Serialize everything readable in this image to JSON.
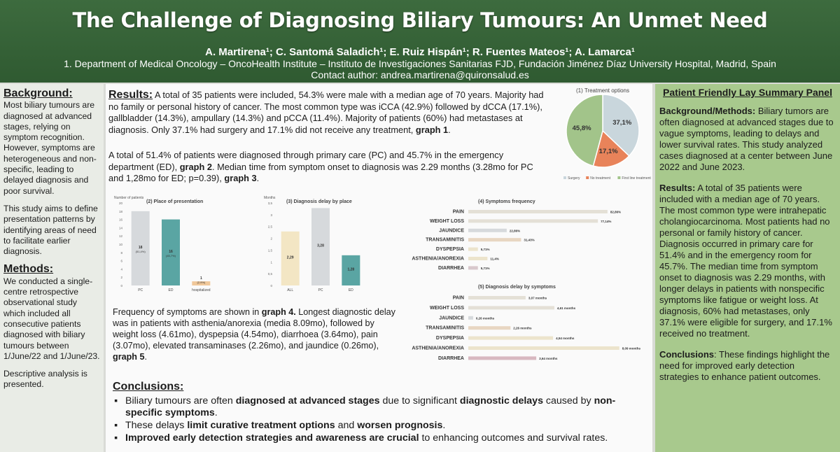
{
  "header": {
    "title": "The Challenge of Diagnosing Biliary Tumours: An Unmet Need",
    "authors": "A. Martirena¹; C. Santomá Saladich¹; E. Ruiz Hispán¹; R. Fuentes Mateos¹; A. Lamarca¹",
    "affiliation": "1.   Department of Medical Oncology – OncoHealth Institute – Instituto de Investigaciones Sanitarias FJD, Fundación Jiménez Díaz University Hospital, Madrid, Spain",
    "contact": "Contact author: andrea.martirena@quironsalud.es"
  },
  "left": {
    "background_title": "Background:",
    "background_text": "Most biliary tumours are diagnosed at advanced stages, relying on symptom recognition. However, symptoms are heterogeneous and non-specific, leading to delayed diagnosis and poor survival.",
    "aim_text": "This study aims to define presentation patterns by identifying areas of need to facilitate earlier diagnosis.",
    "methods_title": "Methods:",
    "methods_text": "We conducted a single-centre retrospective observational study which included all consecutive patients diagnosed with biliary tumours between 1/June/22 and 1/June/23.",
    "descriptive_text": "Descriptive analysis is presented."
  },
  "results": {
    "heading": "Results:",
    "text1": "A total of 35 patients were included, 54.3% were male with a median age of 70 years. Majority had no family or personal history of cancer. The most common type was iCCA (42.9%) followed by dCCA (17.1%), gallbladder (14.3%), ampullary (14.3%) and pCCA (11.4%). Majority of patients (60%) had metastases at diagnosis. Only 37.1% had surgery and 17.1% did not receive any treatment,",
    "ref1": "graph 1",
    "text2a": "A total of 51.4% of patients were diagnosed through primary care (PC) and 45.7% in the emergency department (ED),",
    "ref2": "graph 2",
    "text2b": ". Median time from symptom onset to diagnosis was 2.29 months (3.28mo for PC and 1,28mo for ED; p=0.39),",
    "ref3": "graph 3",
    "text3a": "Frequency of symptoms are shown in",
    "ref4": "graph 4.",
    "text3b": "Longest diagnostic delay was in patients with asthenia/anorexia (media 8.09mo), followed by weight loss (4.61mo), dyspepsia (4.54mo), diarrhoea (3.64mo), pain (3.07mo), elevated transaminases (2.26mo), and jaundice (0.26mo),",
    "ref5": "graph 5"
  },
  "conclusions": {
    "heading": "Conclusions:",
    "b1_pre": "Biliary tumours are often",
    "b1_bold1": "diagnosed at advanced stages",
    "b1_mid": "due to significant",
    "b1_bold2": "diagnostic delays",
    "b1_mid2": "caused by",
    "b1_bold3": "non-specific symptoms",
    "b2_pre": "These delays",
    "b2_bold1": "limit curative treatment options",
    "b2_mid": "and",
    "b2_bold2": "worsen prognosis",
    "b3_bold": "Improved early detection strategies and awareness are crucial",
    "b3_post": "to enhancing outcomes and survival rates."
  },
  "lay": {
    "title": "Patient Friendly Lay Summary Panel",
    "bg_label": "Background/Methods:",
    "bg_text": "Biliary tumors are often diagnosed at advanced stages due to vague symptoms, leading to delays and lower survival rates. This study analyzed cases diagnosed at a center between June 2022 and June 2023.",
    "res_label": "Results:",
    "res_text": "A total of 35 patients were included with a median age of 70 years. The most common type were intrahepatic cholangiocarcinoma. Most patients had no personal or family history of cancer. Diagnosis occurred in primary care for 51.4% and in the emergency room for 45.7%. The median time from symptom onset to diagnosis was 2.29 months, with longer delays in patients with nonspecific symptoms like fatigue or weight loss. At diagnosis, 60% had metastases, only 37.1% were eligible for surgery, and 17.1% received no treatment.",
    "concl_label": "Conclusions",
    "concl_text": ": These findings highlight the need for improved early detection strategies to enhance patient outcomes."
  },
  "chart_data": [
    {
      "type": "pie",
      "title": "(1) Treatment options",
      "labels": [
        "Surgery",
        "No treatment",
        "First line treatment"
      ],
      "values": [
        37.1,
        17.1,
        45.8
      ],
      "value_labels": [
        "37,1%",
        "17,1%",
        "45,8%"
      ],
      "colors": [
        "#c9d6dc",
        "#e8835a",
        "#a2c48a"
      ],
      "legend": "bottom"
    },
    {
      "type": "bar",
      "title": "(2) Place of presentation",
      "ylabel": "Number of patients",
      "categories": [
        "PC",
        "ED",
        "hospitalized"
      ],
      "values": [
        18,
        16,
        1
      ],
      "value_labels": [
        "18",
        "16",
        "1"
      ],
      "sub_labels": [
        "(51,4%)",
        "(45,7%)",
        "(2,9%)"
      ],
      "colors": [
        "#d6d9dc",
        "#5aa5a3",
        "#f0c89a"
      ],
      "ylim": [
        0,
        20
      ]
    },
    {
      "type": "bar",
      "title": "(3) Diagnosis delay by place",
      "ylabel": "Months",
      "categories": [
        "ALL",
        "PC",
        "ED"
      ],
      "values": [
        2.29,
        3.28,
        1.28
      ],
      "value_labels": [
        "2,29",
        "3,28",
        "1,28"
      ],
      "colors": [
        "#f3e6c4",
        "#d6d9dc",
        "#5aa5a3"
      ],
      "ylim": [
        0,
        3.5
      ]
    },
    {
      "type": "bar",
      "orientation": "horizontal",
      "title": "(4) Symptoms frequency",
      "categories": [
        "PAIN",
        "WEIGHT LOSS",
        "JAUNDICE",
        "TRANSAMINITIS",
        "DYSPEPSIA",
        "ASTHENIA/ANOREXIA",
        "DIARRHEA"
      ],
      "values": [
        82.86,
        77.14,
        22.86,
        31.43,
        5.71,
        11.4,
        5.71
      ],
      "value_labels": [
        "82,86%",
        "77,14%",
        "22,86%",
        "31,43%",
        "5,71%",
        "11,4%",
        "5,71%"
      ],
      "colors": [
        "#e4e0d6",
        "#e4e0d6",
        "#d6d9dc",
        "#e8d6c2",
        "#ece4cc",
        "#ece4cc",
        "#d8c8cc"
      ],
      "xlim": [
        0,
        100
      ]
    },
    {
      "type": "bar",
      "orientation": "horizontal",
      "title": "(5) Diagnosis delay by symptoms",
      "categories": [
        "PAIN",
        "WEIGHT LOSS",
        "JAUNDICE",
        "TRANSAMINITIS",
        "DYSPEPSIA",
        "ASTHENIA/ANOREXIA",
        "DIARRHEA"
      ],
      "values": [
        3.07,
        4.61,
        0.26,
        2.26,
        4.54,
        8.09,
        3.64
      ],
      "value_labels": [
        "3,07 months",
        "4,61 months",
        "0,26 months",
        "2,26 months",
        "4,54 months",
        "8,09 months",
        "3,64 months"
      ],
      "colors": [
        "#e4e0d6",
        "#e4e0d6",
        "#d6d9dc",
        "#e8d6c2",
        "#ece4cc",
        "#ece4cc",
        "#d8b8c0"
      ],
      "xlim": [
        0,
        9
      ]
    }
  ]
}
